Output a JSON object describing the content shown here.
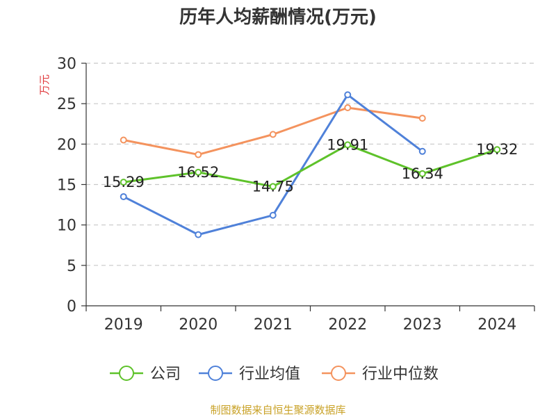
{
  "chart_data": {
    "type": "line",
    "title": "历年人均薪酬情况(万元)",
    "ylabel": "万元",
    "xlabel": "",
    "categories": [
      "2019",
      "2020",
      "2021",
      "2022",
      "2023",
      "2024"
    ],
    "ylim": [
      0,
      30
    ],
    "yticks": [
      0,
      5,
      10,
      15,
      20,
      25,
      30
    ],
    "grid": true,
    "legend_position": "bottom",
    "series": [
      {
        "name": "公司",
        "color": "#5ec22a",
        "values": [
          15.29,
          16.52,
          14.75,
          19.91,
          16.34,
          19.32
        ],
        "labels": [
          "15.29",
          "16.52",
          "14.75",
          "19.91",
          "16.34",
          "19.32"
        ]
      },
      {
        "name": "行业均值",
        "color": "#4f81d9",
        "values": [
          13.5,
          8.8,
          11.2,
          26.1,
          19.1,
          null
        ]
      },
      {
        "name": "行业中位数",
        "color": "#f4935e",
        "values": [
          20.5,
          18.7,
          21.2,
          24.5,
          23.2,
          null
        ]
      }
    ]
  },
  "source": "制图数据来自恒生聚源数据库"
}
